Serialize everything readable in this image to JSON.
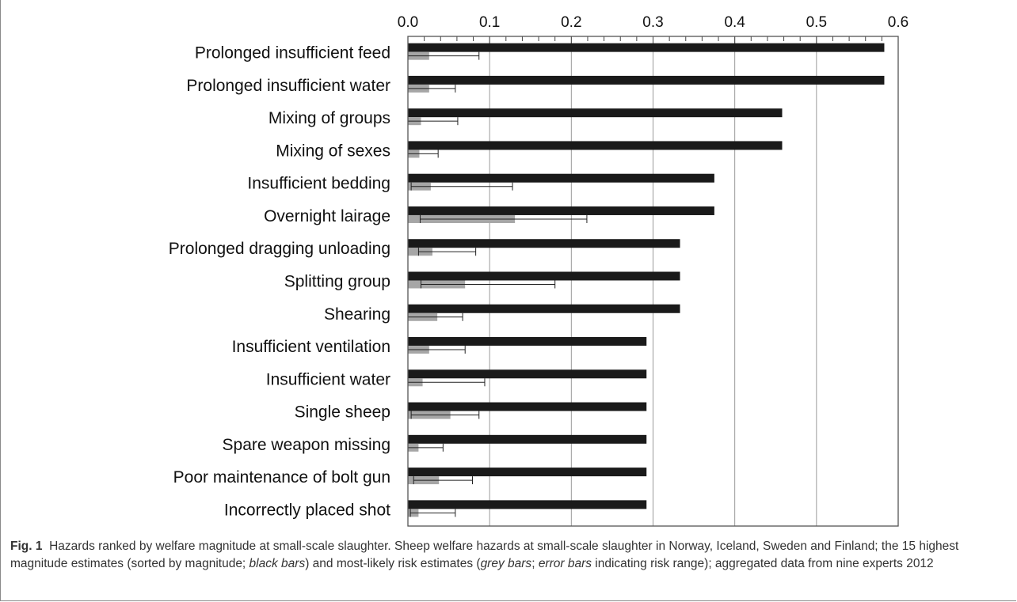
{
  "caption": {
    "label": "Fig. 1",
    "text_before_black": "Hazards ranked by welfare magnitude at small-scale slaughter. Sheep welfare hazards at small-scale slaughter in Norway, Iceland, Sweden and Finland; the 15 highest magnitude estimates (sorted by magnitude; ",
    "black_bars": "black bars",
    "text_mid1": ") and most-likely risk estimates (",
    "grey_bars": "grey bars",
    "text_mid2": "; ",
    "error_bars": "error bars",
    "text_after": " indicating risk range); aggregated data from nine experts 2012"
  },
  "chart_data": {
    "type": "bar",
    "orientation": "horizontal",
    "xlim": [
      0,
      0.6
    ],
    "x_ticks": [
      "0.0",
      "0.1",
      "0.2",
      "0.3",
      "0.4",
      "0.5",
      "0.6"
    ],
    "x_tick_values": [
      0,
      0.1,
      0.2,
      0.3,
      0.4,
      0.5,
      0.6
    ],
    "x_axis_position": "top",
    "grid": "vertical lines at major ticks",
    "legend": "none",
    "colors": {
      "magnitude": "#1a1a1a",
      "risk": "#a6a6a6",
      "error": "#222222",
      "grid": "#9a9a9a"
    },
    "categories": [
      "Prolonged insufficient feed",
      "Prolonged insufficient water",
      "Mixing of groups",
      "Mixing of sexes",
      "Insufficient bedding",
      "Overnight lairage",
      "Prolonged dragging unloading",
      "Splitting group",
      "Shearing",
      "Insufficient ventilation",
      "Insufficient water",
      "Single sheep",
      "Spare weapon missing",
      "Poor maintenance of bolt gun",
      "Incorrectly placed shot"
    ],
    "series": [
      {
        "role": "magnitude",
        "values": [
          0.583,
          0.583,
          0.458,
          0.458,
          0.375,
          0.375,
          0.333,
          0.333,
          0.333,
          0.292,
          0.292,
          0.292,
          0.292,
          0.292,
          0.292
        ]
      },
      {
        "role": "risk",
        "values": [
          0.026,
          0.026,
          0.016,
          0.014,
          0.028,
          0.131,
          0.03,
          0.07,
          0.036,
          0.026,
          0.018,
          0.052,
          0.013,
          0.038,
          0.013
        ],
        "error_low": [
          0.0,
          0.0,
          0.0,
          0.0,
          0.004,
          0.015,
          0.013,
          0.016,
          0.0,
          0.0,
          0.0,
          0.004,
          0.0,
          0.007,
          0.003
        ],
        "error_high": [
          0.087,
          0.058,
          0.061,
          0.037,
          0.128,
          0.219,
          0.083,
          0.18,
          0.067,
          0.07,
          0.094,
          0.087,
          0.043,
          0.079,
          0.058
        ]
      }
    ]
  }
}
